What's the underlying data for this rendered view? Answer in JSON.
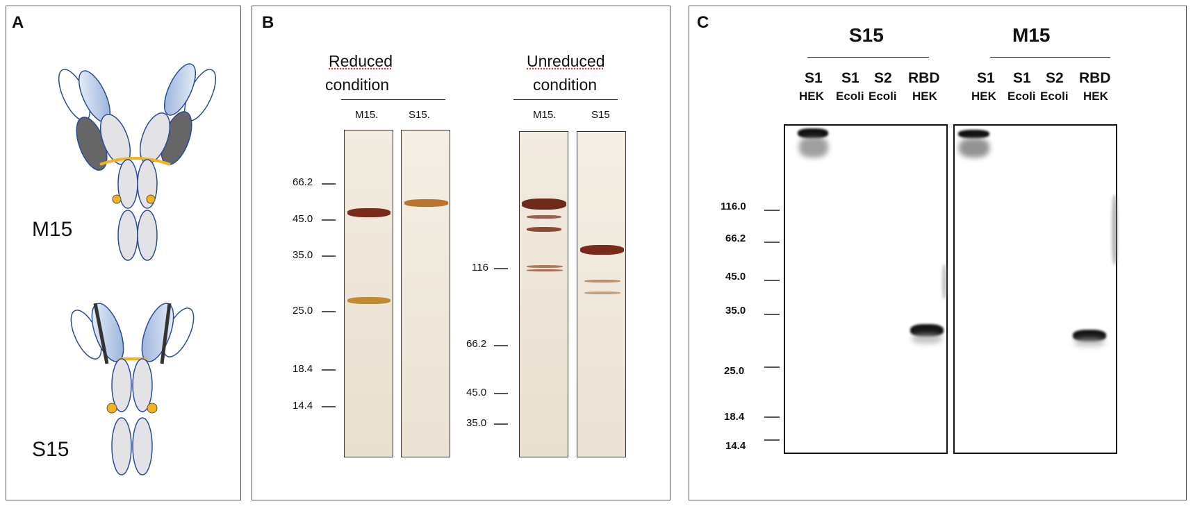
{
  "panel_a": {
    "label": "A",
    "construct_1": "M15",
    "construct_2": "S15"
  },
  "panel_b": {
    "label": "B",
    "reduced": {
      "title_line1": "Reduced",
      "title_line2": "condition",
      "lanes": [
        "M15.",
        "S15."
      ],
      "markers": [
        "66.2",
        "45.0",
        "35.0",
        "25.0",
        "18.4",
        "14.4"
      ]
    },
    "unreduced": {
      "title_line1": "Unreduced",
      "title_line2": "condition",
      "lanes": [
        "M15.",
        "S15"
      ],
      "markers": [
        "116",
        "66.2",
        "45.0",
        "35.0"
      ]
    }
  },
  "panel_c": {
    "label": "C",
    "group_1": "S15",
    "group_2": "M15",
    "lanes": [
      {
        "top": "S1",
        "bottom": "HEK"
      },
      {
        "top": "S1",
        "bottom": "Ecoli"
      },
      {
        "top": "S2",
        "bottom": "Ecoli"
      },
      {
        "top": "RBD",
        "bottom": "HEK"
      }
    ],
    "markers": [
      "116.0",
      "66.2",
      "45.0",
      "35.0",
      "25.0",
      "18.4",
      "14.4"
    ]
  },
  "colors": {
    "light_chain_variable": "#c9d8ee",
    "heavy_chain_domain": "#e3e3e6",
    "ch1_dark": "#666666",
    "hinge": "#f5b21a",
    "outline": "#2a4a9a",
    "band_brown": "#7a2a1a",
    "band_amber": "#c08a30"
  }
}
